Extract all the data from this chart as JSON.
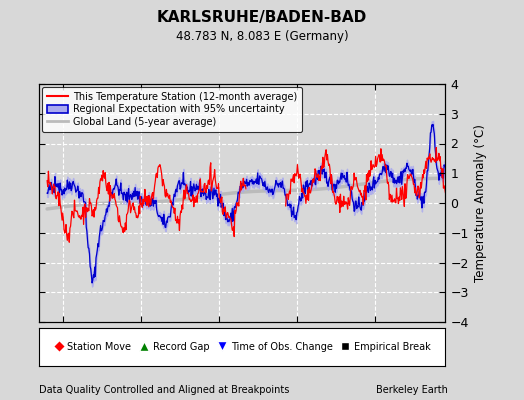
{
  "title": "KARLSRUHE/BADEN-BAD",
  "subtitle": "48.783 N, 8.083 E (Germany)",
  "ylabel": "Temperature Anomaly (°C)",
  "xlabel_bottom": "Data Quality Controlled and Aligned at Breakpoints",
  "xlabel_right": "Berkeley Earth",
  "ylim": [
    -4,
    4
  ],
  "xlim": [
    1957,
    2009
  ],
  "xticks": [
    1960,
    1970,
    1980,
    1990,
    2000
  ],
  "yticks": [
    -4,
    -3,
    -2,
    -1,
    0,
    1,
    2,
    3,
    4
  ],
  "bg_color": "#d8d8d8",
  "plot_bg_color": "#d8d8d8",
  "grid_color": "#ffffff",
  "station_color": "#ff0000",
  "regional_color": "#0000cc",
  "regional_fill_color": "#aaaaee",
  "global_color": "#bbbbbb",
  "legend1_labels": [
    "This Temperature Station (12-month average)",
    "Regional Expectation with 95% uncertainty",
    "Global Land (5-year average)"
  ],
  "legend2_labels": [
    "Station Move",
    "Record Gap",
    "Time of Obs. Change",
    "Empirical Break"
  ],
  "legend2_markers": [
    "D",
    "^",
    "v",
    "s"
  ],
  "legend2_colors": [
    "#ff0000",
    "#008000",
    "#0000ff",
    "#000000"
  ],
  "years_start": 1958,
  "years_end": 2009,
  "seed": 42
}
